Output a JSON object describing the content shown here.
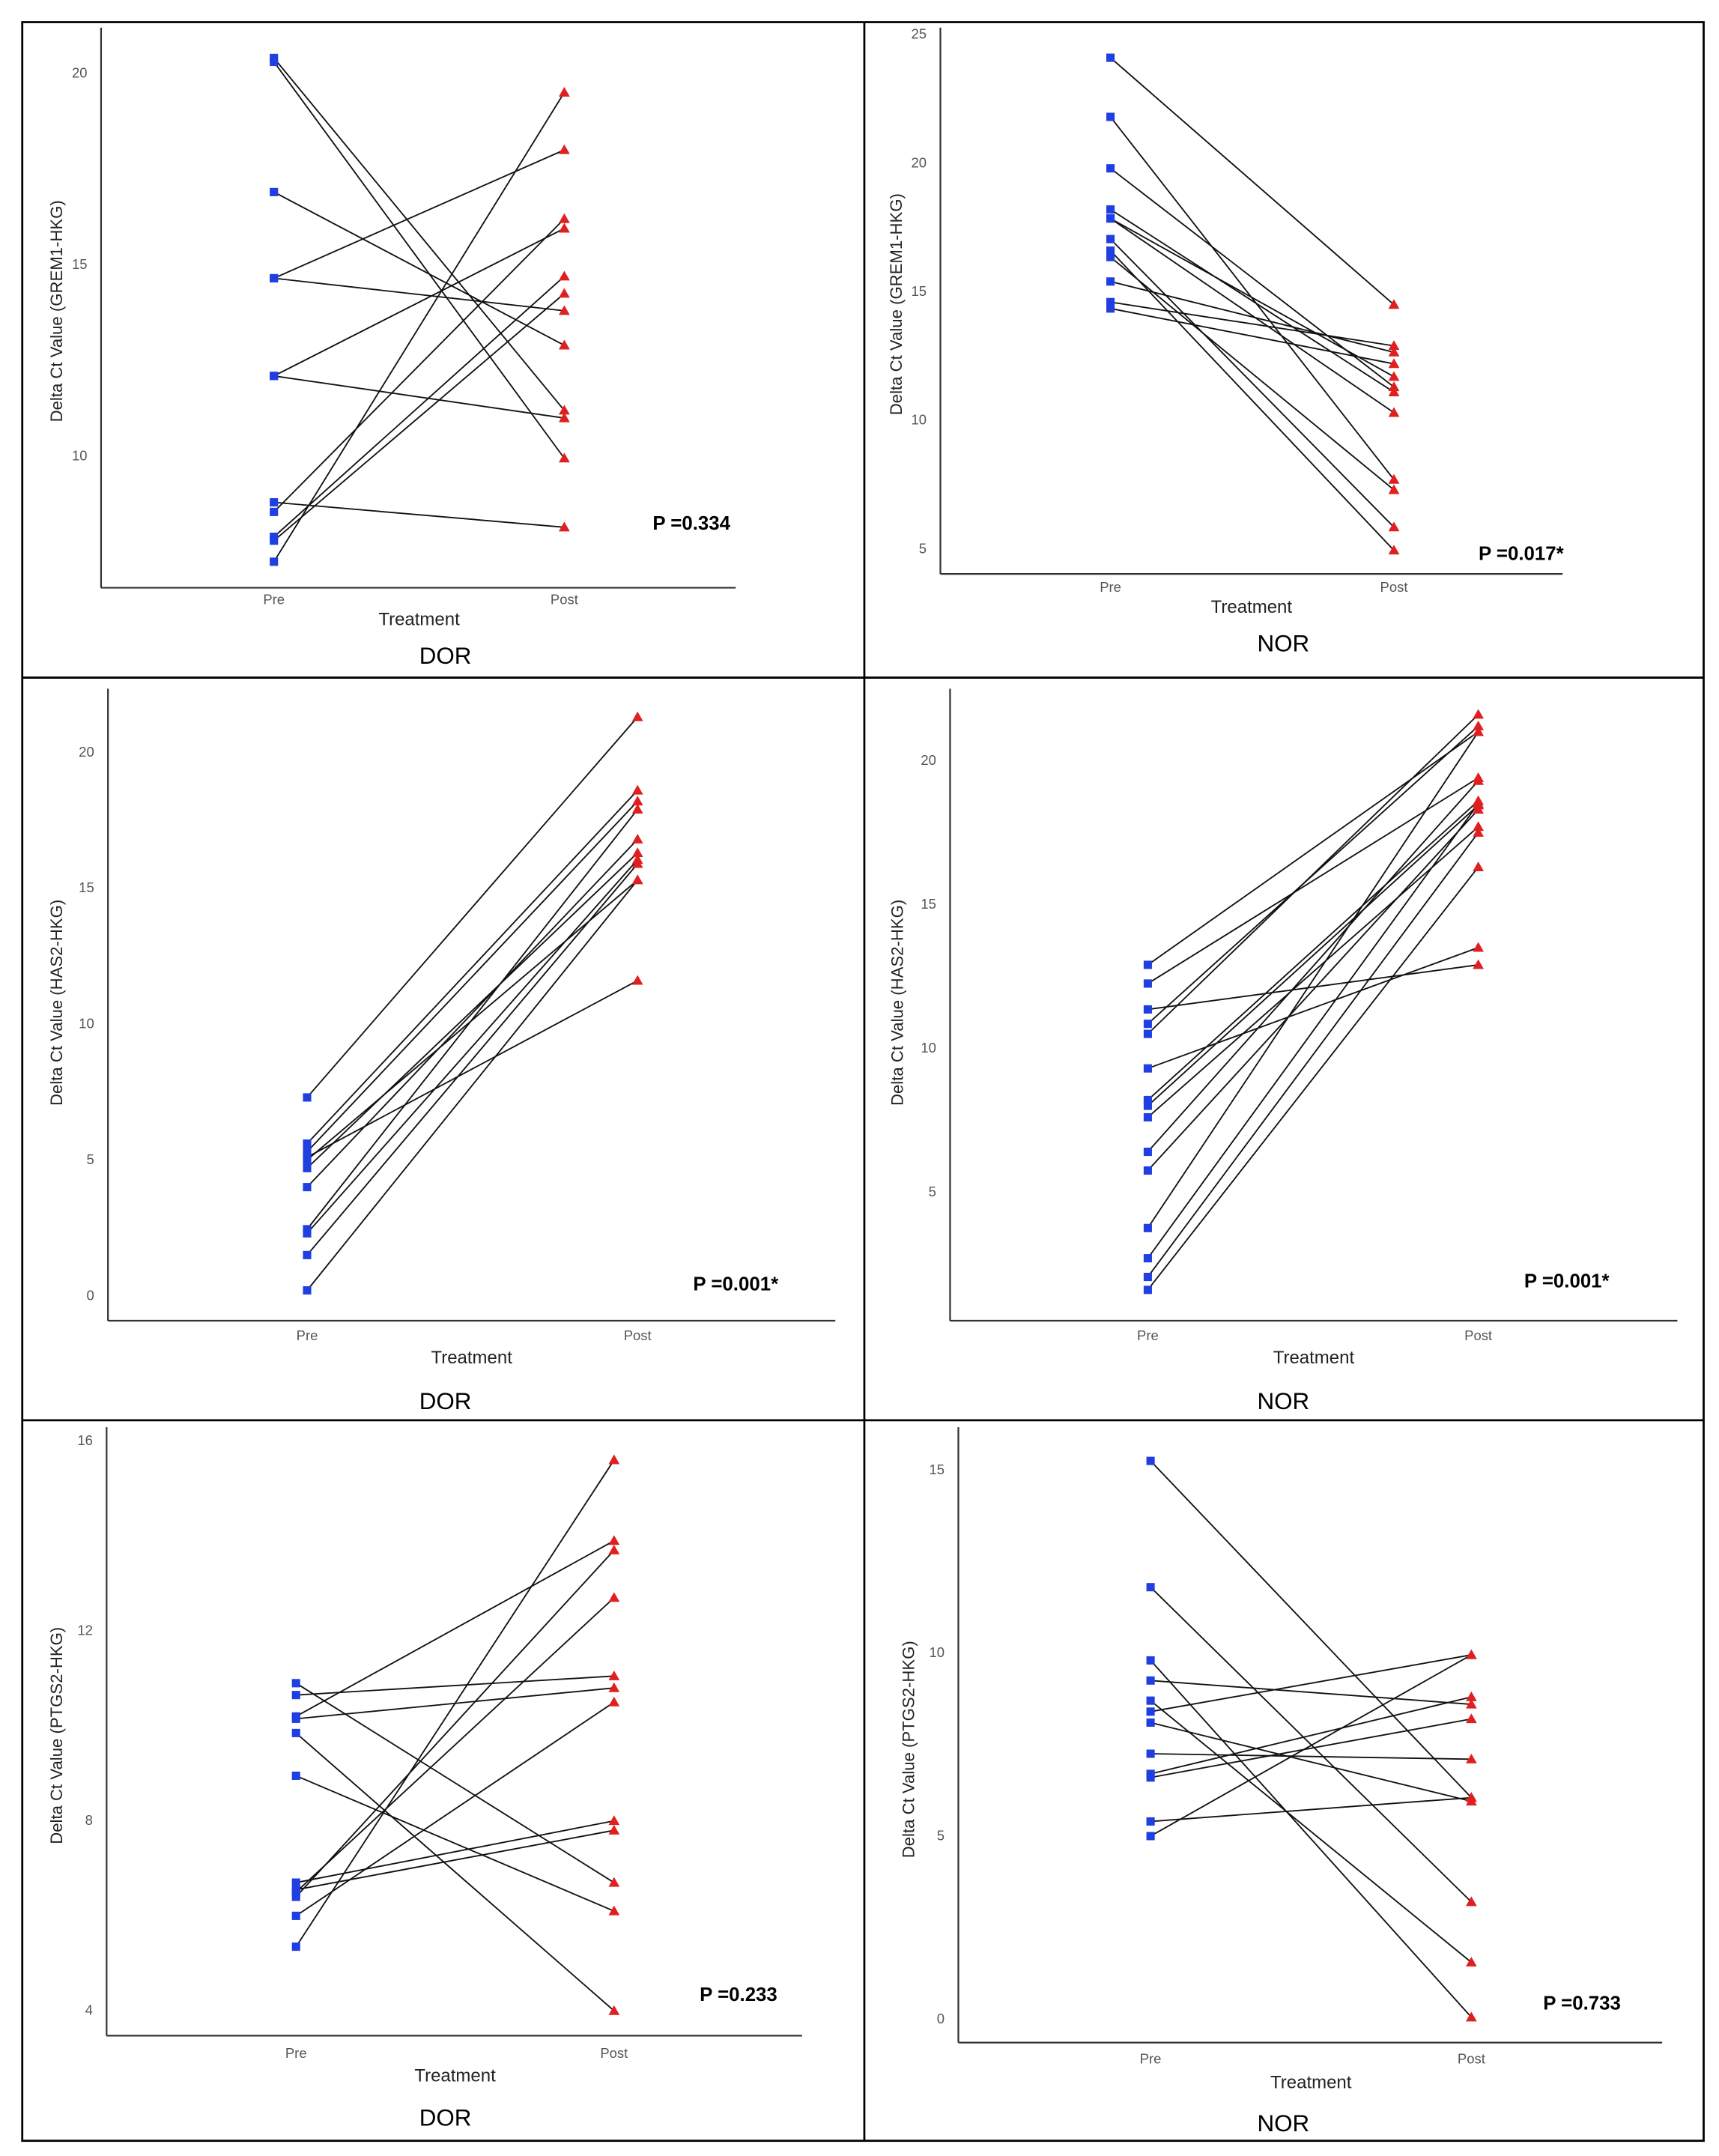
{
  "chart_data": [
    {
      "type": "line",
      "title": "DOR",
      "xlabel": "Treatment",
      "ylabel": "Delta Ct Value (GREM1-HKG)",
      "categories": [
        "Pre",
        "Post"
      ],
      "yticks": [
        10,
        15,
        20
      ],
      "p_value": "P =0.334",
      "series": [
        {
          "name": "Pre",
          "color": "#1f3fe0",
          "marker": "square"
        },
        {
          "name": "Post",
          "color": "#e02020",
          "marker": "triangle"
        }
      ],
      "pairs": [
        [
          20.4,
          11.2
        ],
        [
          20.3,
          9.95
        ],
        [
          16.9,
          12.9
        ],
        [
          14.65,
          18.0
        ],
        [
          14.65,
          13.8
        ],
        [
          12.1,
          15.95
        ],
        [
          12.1,
          11.0
        ],
        [
          8.8,
          8.15
        ],
        [
          8.55,
          16.2
        ],
        [
          7.9,
          14.7
        ],
        [
          7.8,
          14.25
        ],
        [
          7.25,
          19.5
        ]
      ]
    },
    {
      "type": "line",
      "title": "NOR",
      "xlabel": "Treatment",
      "ylabel": "Delta Ct Value (GREM1-HKG)",
      "categories": [
        "Pre",
        "Post"
      ],
      "yticks": [
        5,
        10,
        15,
        20,
        25
      ],
      "p_value": "P =0.017*",
      "series": [
        {
          "name": "Pre",
          "color": "#1f3fe0",
          "marker": "square"
        },
        {
          "name": "Post",
          "color": "#e02020",
          "marker": "triangle"
        }
      ],
      "pairs": [
        [
          24.1,
          14.5
        ],
        [
          21.8,
          7.7
        ],
        [
          19.8,
          11.3
        ],
        [
          18.2,
          11.1
        ],
        [
          17.85,
          11.7
        ],
        [
          17.85,
          10.3
        ],
        [
          17.05,
          5.85
        ],
        [
          16.6,
          4.95
        ],
        [
          16.35,
          7.3
        ],
        [
          15.4,
          12.65
        ],
        [
          14.6,
          12.9
        ],
        [
          14.35,
          12.2
        ]
      ]
    },
    {
      "type": "line",
      "title": "DOR",
      "xlabel": "Treatment",
      "ylabel": "Delta Ct Value (HAS2-HKG)",
      "categories": [
        "Pre",
        "Post"
      ],
      "yticks": [
        0,
        5,
        10,
        15,
        20
      ],
      "p_value": "P =0.001*",
      "series": [
        {
          "name": "Pre",
          "color": "#1f3fe0",
          "marker": "square"
        },
        {
          "name": "Post",
          "color": "#e02020",
          "marker": "triangle"
        }
      ],
      "pairs": [
        [
          7.3,
          21.3
        ],
        [
          5.6,
          18.6
        ],
        [
          5.3,
          18.2
        ],
        [
          5.1,
          11.6
        ],
        [
          5.0,
          15.3
        ],
        [
          4.7,
          16.3
        ],
        [
          4.0,
          16.8
        ],
        [
          2.45,
          17.9
        ],
        [
          2.3,
          16.05
        ],
        [
          1.5,
          15.9
        ],
        [
          0.2,
          15.3
        ]
      ]
    },
    {
      "type": "line",
      "title": "NOR",
      "xlabel": "Treatment",
      "ylabel": "Delta Ct Value (HAS2-HKG)",
      "categories": [
        "Pre",
        "Post"
      ],
      "yticks": [
        5,
        10,
        15,
        20
      ],
      "p_value": "P =0.001*",
      "series": [
        {
          "name": "Pre",
          "color": "#1f3fe0",
          "marker": "square"
        },
        {
          "name": "Post",
          "color": "#e02020",
          "marker": "triangle"
        }
      ],
      "pairs": [
        [
          12.9,
          21.0
        ],
        [
          12.25,
          19.4
        ],
        [
          11.35,
          12.9
        ],
        [
          10.85,
          21.2
        ],
        [
          10.5,
          21.6
        ],
        [
          9.3,
          13.5
        ],
        [
          8.2,
          18.6
        ],
        [
          8.0,
          18.45
        ],
        [
          7.6,
          17.7
        ],
        [
          6.4,
          19.3
        ],
        [
          5.75,
          18.3
        ],
        [
          3.75,
          21.0
        ],
        [
          2.7,
          18.5
        ],
        [
          2.05,
          17.5
        ],
        [
          1.6,
          16.3
        ]
      ]
    },
    {
      "type": "line",
      "title": "DOR",
      "xlabel": "Treatment",
      "ylabel": "Delta Ct Value (PTGS2-HKG)",
      "categories": [
        "Pre",
        "Post"
      ],
      "yticks": [
        4,
        8,
        12,
        16
      ],
      "p_value": "P =0.233",
      "series": [
        {
          "name": "Pre",
          "color": "#1f3fe0",
          "marker": "square"
        },
        {
          "name": "Post",
          "color": "#e02020",
          "marker": "triangle"
        }
      ],
      "pairs": [
        [
          10.9,
          6.7
        ],
        [
          10.65,
          11.05
        ],
        [
          10.2,
          13.9
        ],
        [
          10.15,
          10.8
        ],
        [
          9.85,
          4.0
        ],
        [
          8.95,
          6.1
        ],
        [
          6.7,
          8.0
        ],
        [
          6.55,
          7.8
        ],
        [
          6.4,
          13.7
        ],
        [
          6.5,
          12.7
        ],
        [
          6.0,
          10.5
        ],
        [
          5.35,
          15.6
        ]
      ]
    },
    {
      "type": "line",
      "title": "NOR",
      "xlabel": "Treatment",
      "ylabel": "Delta Ct Value (PTGS2-HKG)",
      "categories": [
        "Pre",
        "Post"
      ],
      "yticks": [
        0,
        5,
        10,
        15
      ],
      "p_value": "P =0.733",
      "series": [
        {
          "name": "Pre",
          "color": "#1f3fe0",
          "marker": "square"
        },
        {
          "name": "Post",
          "color": "#e02020",
          "marker": "triangle"
        }
      ],
      "pairs": [
        [
          15.25,
          6.05
        ],
        [
          11.8,
          3.2
        ],
        [
          9.8,
          0.05
        ],
        [
          9.25,
          8.6
        ],
        [
          8.7,
          1.55
        ],
        [
          8.4,
          9.95
        ],
        [
          8.1,
          5.95
        ],
        [
          7.25,
          7.1
        ],
        [
          6.7,
          8.8
        ],
        [
          6.6,
          8.2
        ],
        [
          5.4,
          6.05
        ],
        [
          5.0,
          9.95
        ]
      ]
    }
  ]
}
